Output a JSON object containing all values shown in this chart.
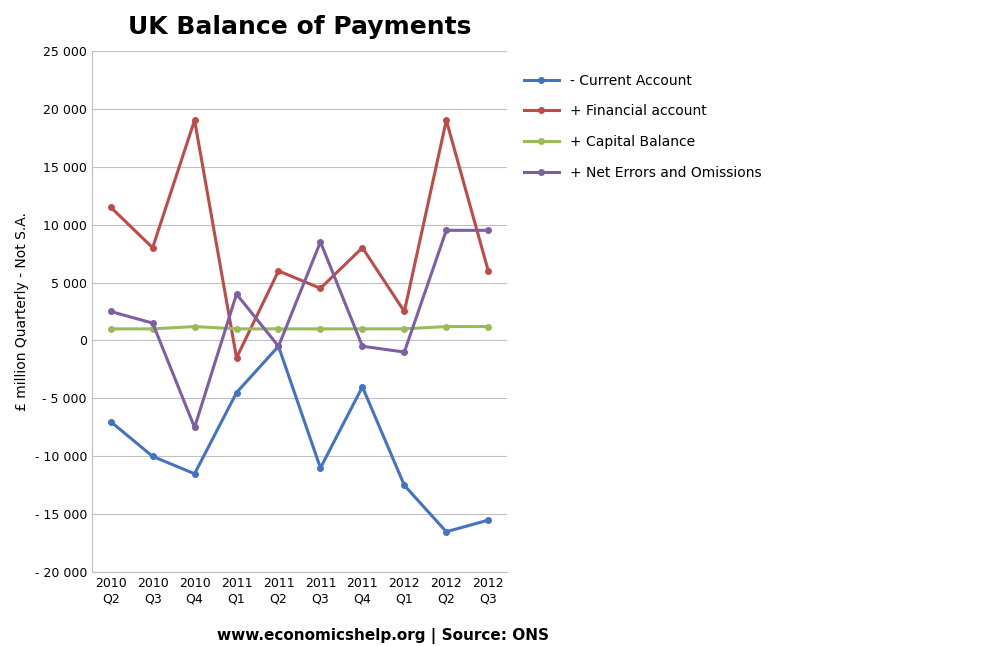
{
  "title": "UK Balance of Payments",
  "ylabel": "£ million Quarterly - Not S.A.",
  "footer": "www.economicshelp.org | Source: ONS",
  "categories": [
    "2010\nQ2",
    "2010\nQ3",
    "2010\nQ4",
    "2011\nQ1",
    "2011\nQ2",
    "2011\nQ3",
    "2011\nQ4",
    "2012\nQ1",
    "2012\nQ2",
    "2012\nQ3"
  ],
  "ylim": [
    -20000,
    25000
  ],
  "yticks": [
    -20000,
    -15000,
    -10000,
    -5000,
    0,
    5000,
    10000,
    15000,
    20000,
    25000
  ],
  "series": [
    {
      "label": "- Current Account",
      "color": "#4472C4",
      "values": [
        -7000,
        -10000,
        -11500,
        -4500,
        -500,
        -11000,
        -4000,
        -12500,
        -16500,
        -15500
      ]
    },
    {
      "label": "+ Financial account",
      "color": "#BE4B48",
      "values": [
        11500,
        8000,
        19000,
        -1500,
        6000,
        4500,
        8000,
        2500,
        19000,
        6000
      ]
    },
    {
      "label": "+ Capital Balance",
      "color": "#9BBB59",
      "values": [
        1000,
        1000,
        1200,
        1000,
        1000,
        1000,
        1000,
        1000,
        1200,
        1200
      ]
    },
    {
      "label": "+ Net Errors and Omissions",
      "color": "#7F5FA4",
      "values": [
        2500,
        1500,
        -7500,
        4000,
        -500,
        8500,
        -500,
        -1000,
        9500,
        9500
      ]
    }
  ],
  "background_color": "#FFFFFF",
  "grid_color": "#C0C0C0",
  "title_fontsize": 18,
  "label_fontsize": 10,
  "tick_fontsize": 9,
  "legend_fontsize": 10,
  "footer_fontsize": 11
}
